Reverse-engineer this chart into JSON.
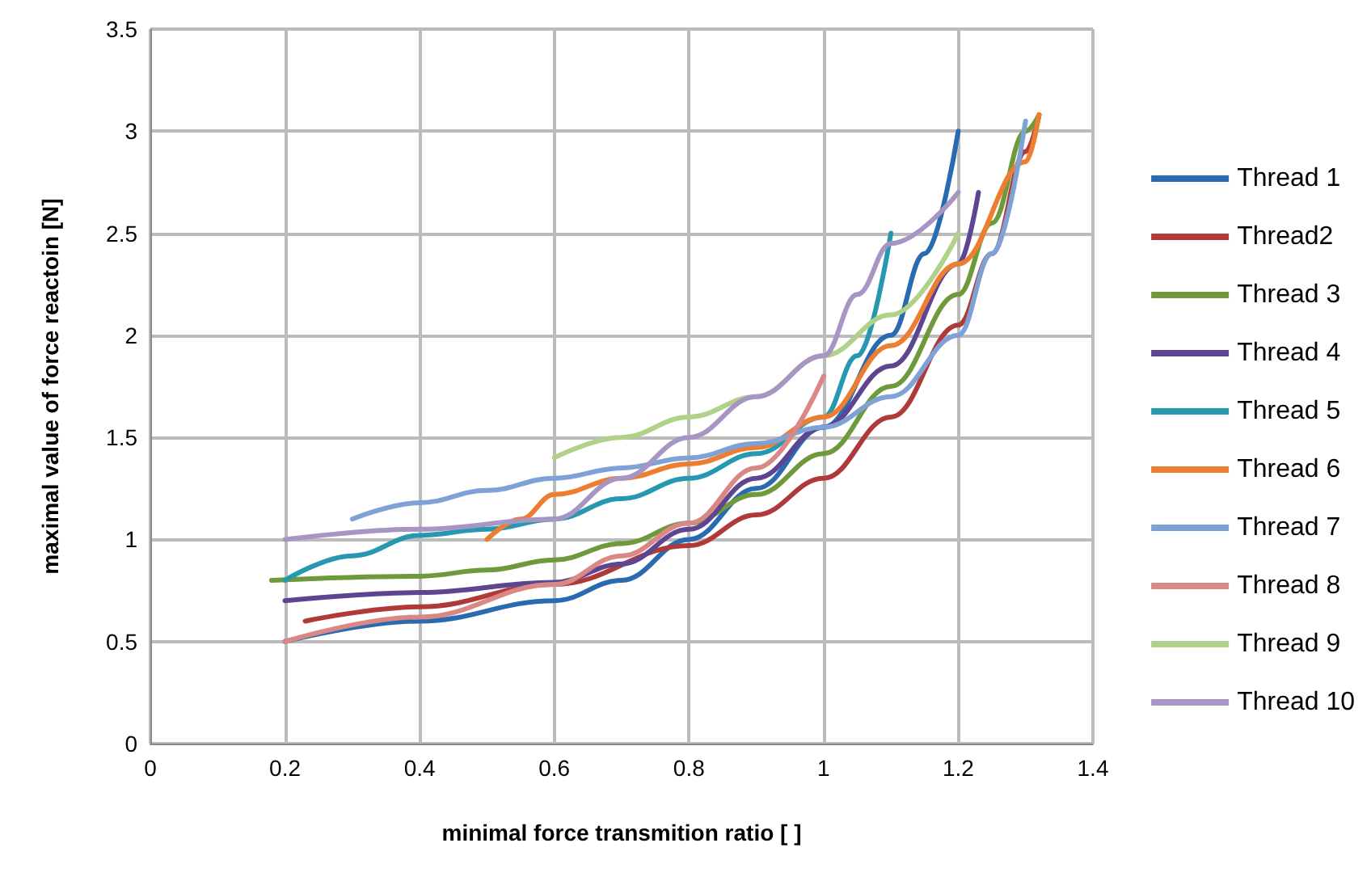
{
  "chart_data": {
    "type": "line",
    "xlabel": "minimal force transmition ratio [ ]",
    "ylabel": "maximal value of force reactoin [N]",
    "xlim": [
      0,
      1.4
    ],
    "xticks": [
      0,
      0.2,
      0.4,
      0.6,
      0.8,
      1,
      1.2,
      1.4
    ],
    "ylim": [
      0,
      3.5
    ],
    "yticks": [
      0,
      0.5,
      1,
      1.5,
      2,
      2.5,
      3,
      3.5
    ],
    "grid": true,
    "legend": "right",
    "marker": "none",
    "line_style": "solid",
    "series": [
      {
        "name": "Thread 1",
        "color": "#2a6ab0",
        "x": [
          0.2,
          0.4,
          0.6,
          0.7,
          0.8,
          0.9,
          1.0,
          1.1,
          1.15,
          1.2
        ],
        "values": [
          0.5,
          0.6,
          0.7,
          0.8,
          1.0,
          1.25,
          1.55,
          2.0,
          2.4,
          3.0
        ]
      },
      {
        "name": "Thread2",
        "color": "#b03a3a",
        "x": [
          0.23,
          0.4,
          0.6,
          0.8,
          0.9,
          1.0,
          1.1,
          1.2,
          1.25,
          1.3,
          1.32
        ],
        "values": [
          0.6,
          0.67,
          0.78,
          0.97,
          1.12,
          1.3,
          1.6,
          2.05,
          2.4,
          2.9,
          3.08
        ]
      },
      {
        "name": "Thread 3",
        "color": "#6f9a3c",
        "x": [
          0.18,
          0.4,
          0.5,
          0.6,
          0.7,
          0.8,
          0.9,
          1.0,
          1.1,
          1.2,
          1.25,
          1.3,
          1.32
        ],
        "values": [
          0.8,
          0.82,
          0.85,
          0.9,
          0.98,
          1.08,
          1.22,
          1.42,
          1.75,
          2.2,
          2.55,
          3.0,
          3.08
        ]
      },
      {
        "name": "Thread 4",
        "color": "#5e4591",
        "x": [
          0.2,
          0.4,
          0.6,
          0.7,
          0.8,
          0.9,
          1.0,
          1.1,
          1.2,
          1.23
        ],
        "values": [
          0.7,
          0.74,
          0.79,
          0.88,
          1.05,
          1.3,
          1.55,
          1.85,
          2.35,
          2.7
        ]
      },
      {
        "name": "Thread 5",
        "color": "#2798b0",
        "x": [
          0.2,
          0.3,
          0.4,
          0.5,
          0.6,
          0.7,
          0.8,
          0.9,
          1.0,
          1.05,
          1.1
        ],
        "values": [
          0.8,
          0.92,
          1.02,
          1.05,
          1.1,
          1.2,
          1.3,
          1.42,
          1.6,
          1.9,
          2.5
        ]
      },
      {
        "name": "Thread 6",
        "color": "#ed7d31",
        "x": [
          0.5,
          0.55,
          0.6,
          0.7,
          0.8,
          0.9,
          1.0,
          1.1,
          1.2,
          1.3,
          1.32
        ],
        "values": [
          1.0,
          1.1,
          1.22,
          1.3,
          1.37,
          1.45,
          1.6,
          1.95,
          2.35,
          2.85,
          3.08
        ]
      },
      {
        "name": "Thread 7",
        "color": "#7fa2d6",
        "x": [
          0.3,
          0.4,
          0.5,
          0.6,
          0.7,
          0.8,
          0.9,
          1.0,
          1.1,
          1.2,
          1.25,
          1.3
        ],
        "values": [
          1.1,
          1.18,
          1.24,
          1.3,
          1.35,
          1.4,
          1.47,
          1.55,
          1.7,
          2.0,
          2.4,
          3.05
        ]
      },
      {
        "name": "Thread 8",
        "color": "#d98886",
        "x": [
          0.2,
          0.4,
          0.6,
          0.7,
          0.8,
          0.9,
          1.0
        ],
        "values": [
          0.5,
          0.62,
          0.78,
          0.92,
          1.08,
          1.35,
          1.8
        ]
      },
      {
        "name": "Thread 9",
        "color": "#b1d18a",
        "x": [
          0.6,
          0.7,
          0.8,
          0.9,
          1.0,
          1.1,
          1.2
        ],
        "values": [
          1.4,
          1.5,
          1.6,
          1.7,
          1.9,
          2.1,
          2.5
        ]
      },
      {
        "name": "Thread 10",
        "color": "#a796c3",
        "x": [
          0.2,
          0.4,
          0.6,
          0.7,
          0.8,
          0.9,
          1.0,
          1.05,
          1.1,
          1.2
        ],
        "values": [
          1.0,
          1.05,
          1.1,
          1.3,
          1.5,
          1.7,
          1.9,
          2.2,
          2.45,
          2.7
        ]
      }
    ]
  }
}
